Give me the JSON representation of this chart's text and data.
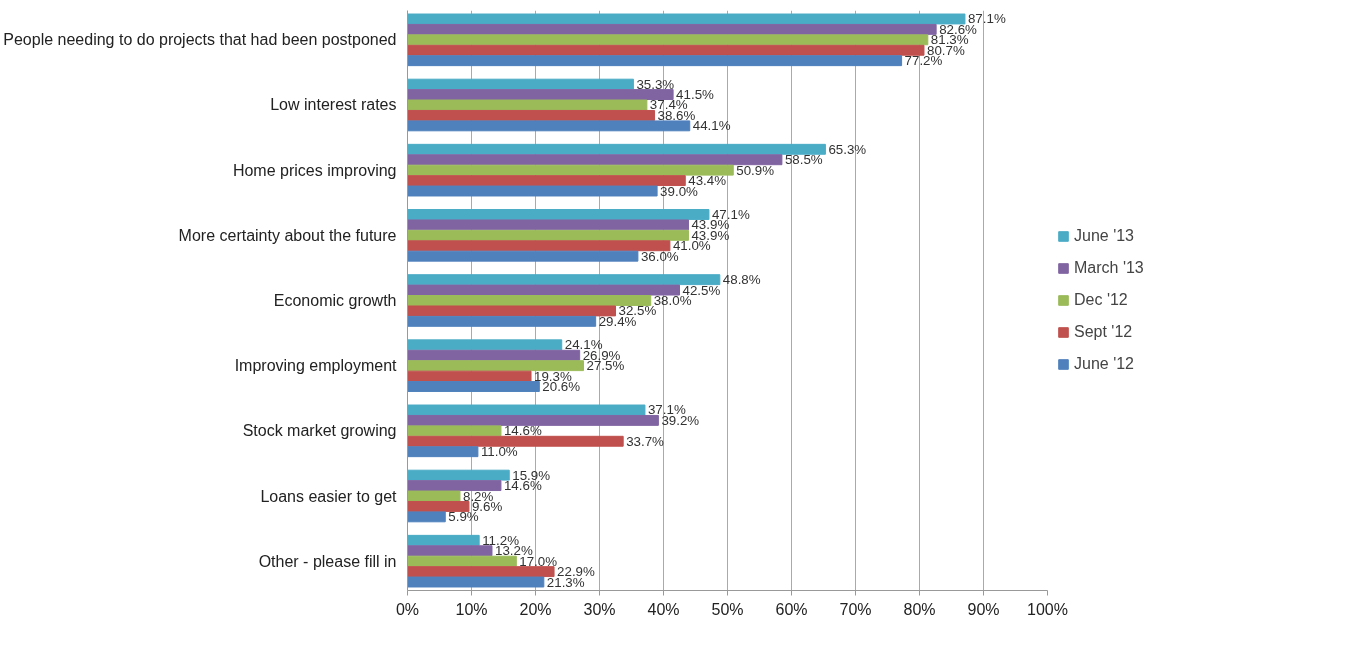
{
  "chart_data": {
    "type": "bar",
    "orientation": "horizontal",
    "categories": [
      "People needing to do projects that had been postponed",
      "Low interest rates",
      "Home prices improving",
      "More certainty about the future",
      "Economic growth",
      "Improving employment",
      "Stock market growing",
      "Loans easier to get",
      "Other - please fill in"
    ],
    "series": [
      {
        "name": "June '13",
        "color": "#4bacc6",
        "values": [
          87.1,
          35.3,
          65.3,
          47.1,
          48.8,
          24.1,
          37.1,
          15.9,
          11.2
        ],
        "value_labels": [
          "87.1%",
          "35.3%",
          "65.3%",
          "47.1%",
          "48.8%",
          "24.1%",
          "37.1%",
          "15.9%",
          "11.2%"
        ]
      },
      {
        "name": "March '13",
        "color": "#8064a2",
        "values": [
          82.6,
          41.5,
          58.5,
          43.9,
          42.5,
          26.9,
          39.2,
          14.6,
          13.2
        ],
        "value_labels": [
          "82.6%",
          "41.5%",
          "58.5%",
          "43.9%",
          "42.5%",
          "26.9%",
          "39.2%",
          "14.6%",
          "13.2%"
        ]
      },
      {
        "name": "Dec '12",
        "color": "#9bbb59",
        "values": [
          81.3,
          37.4,
          50.9,
          43.9,
          38.0,
          27.5,
          14.6,
          8.2,
          17.0
        ],
        "value_labels": [
          "81.3%",
          "37.4%",
          "50.9%",
          "43.9%",
          "38.0%",
          "27.5%",
          "14.6%",
          "8.2%",
          "17.0%"
        ]
      },
      {
        "name": "Sept '12",
        "color": "#c0504d",
        "values": [
          80.7,
          38.6,
          43.4,
          41.0,
          32.5,
          19.3,
          33.7,
          9.6,
          22.9
        ],
        "value_labels": [
          "80.7%",
          "38.6%",
          "43.4%",
          "41.0%",
          "32.5%",
          "19.3%",
          "33.7%",
          "9.6%",
          "22.9%"
        ]
      },
      {
        "name": "June '12",
        "color": "#4f81bd",
        "values": [
          77.2,
          44.1,
          39.0,
          36.0,
          29.4,
          20.6,
          11.0,
          5.9,
          21.3
        ],
        "value_labels": [
          "77.2%",
          "44.1%",
          "39.0%",
          "36.0%",
          "29.4%",
          "20.6%",
          "11.0%",
          "5.9%",
          "21.3%"
        ]
      }
    ],
    "xlim": [
      0,
      100
    ],
    "xticks": [
      {
        "value": 0,
        "label": "0%"
      },
      {
        "value": 10,
        "label": "10%"
      },
      {
        "value": 20,
        "label": "20%"
      },
      {
        "value": 30,
        "label": "30%"
      },
      {
        "value": 40,
        "label": "40%"
      },
      {
        "value": 50,
        "label": "50%"
      },
      {
        "value": 60,
        "label": "60%"
      },
      {
        "value": 70,
        "label": "70%"
      },
      {
        "value": 80,
        "label": "80%"
      },
      {
        "value": 90,
        "label": "90%"
      },
      {
        "value": 100,
        "label": "100%"
      }
    ],
    "grid": "x",
    "legend": "right"
  }
}
